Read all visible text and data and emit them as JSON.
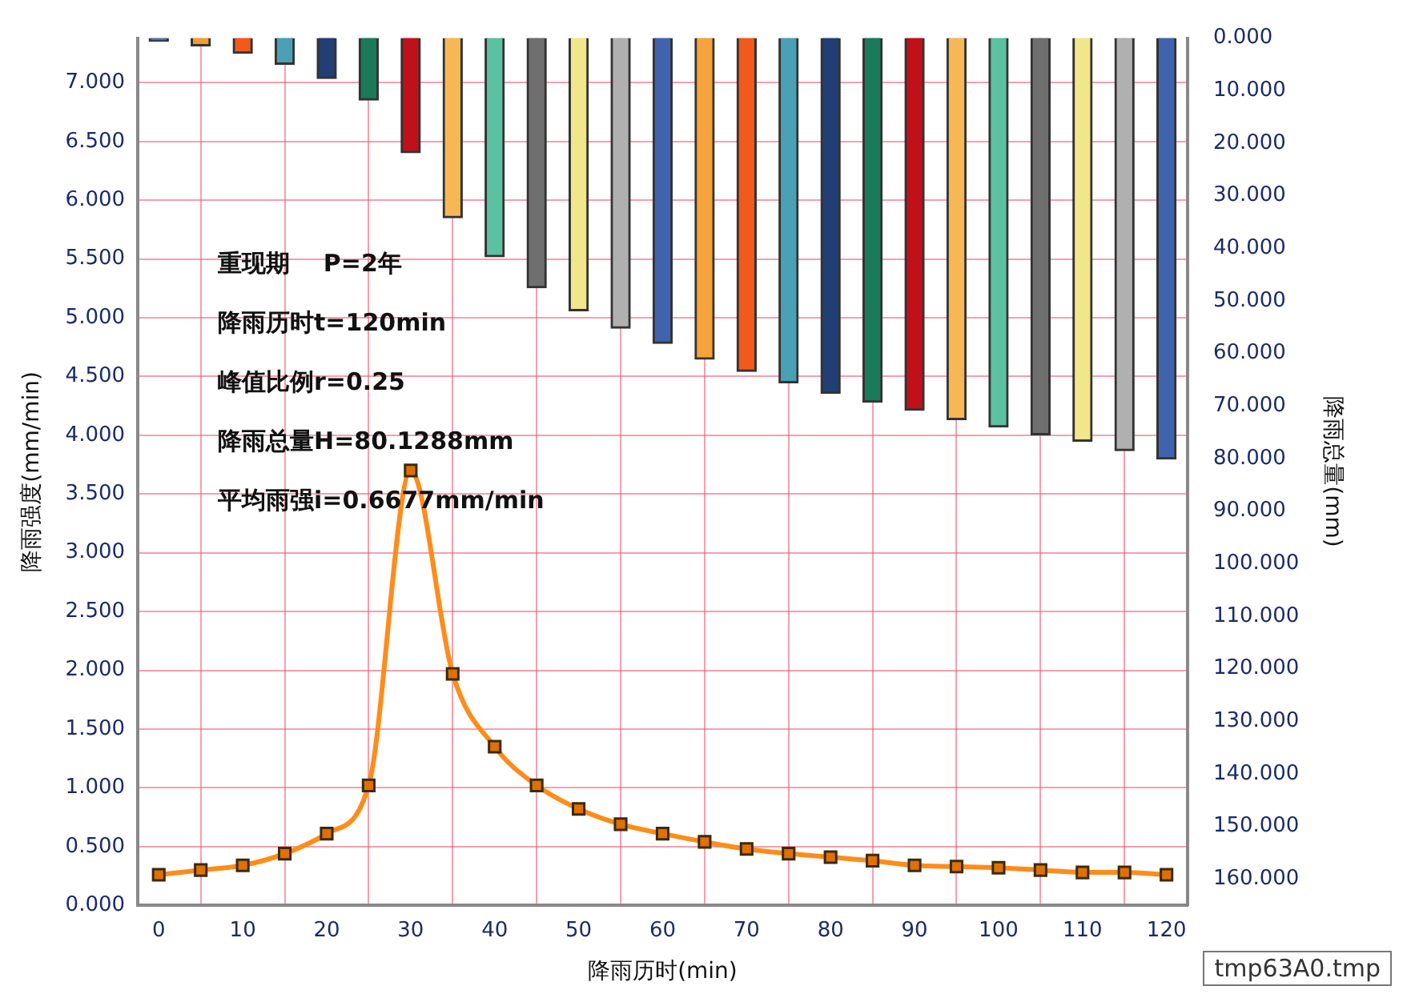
{
  "chart_data": {
    "type": "line",
    "x": [
      0,
      5,
      10,
      15,
      20,
      25,
      30,
      35,
      40,
      45,
      50,
      55,
      60,
      65,
      70,
      75,
      80,
      85,
      90,
      95,
      100,
      105,
      110,
      115,
      120
    ],
    "series": [
      {
        "type": "bar",
        "axis": "y2",
        "colors": [
          "#4f6fb0",
          "#f39c33",
          "#f05a1a",
          "#4aa0b5",
          "#213f74",
          "#1a7a5a",
          "#c0111a",
          "#f5b855",
          "#5cc1a0",
          "#6f6f6f",
          "#f0e68a",
          "#b0b0b0",
          "#3f64ad",
          "#f5a33a",
          "#f05a1a",
          "#4aa0b5",
          "#213f74",
          "#1a7a5a",
          "#c0111a",
          "#f5b855",
          "#5cc1a0",
          "#6f6f6f",
          "#f0e68a",
          "#b0b0b0",
          "#3f64ad"
        ],
        "values": [
          0.6,
          1.5,
          2.9,
          5.0,
          7.7,
          11.8,
          21.8,
          34.2,
          41.6,
          47.5,
          51.9,
          55.2,
          58.1,
          61.1,
          63.4,
          65.6,
          67.6,
          69.3,
          70.8,
          72.6,
          74.0,
          75.5,
          76.7,
          78.5,
          80.1
        ]
      },
      {
        "color": "#ff8c1a",
        "values": [
          0.26,
          0.3,
          0.34,
          0.44,
          0.61,
          1.02,
          3.7,
          1.97,
          1.35,
          1.02,
          0.82,
          0.69,
          0.61,
          0.54,
          0.48,
          0.44,
          0.41,
          0.38,
          0.34,
          0.33,
          0.32,
          0.3,
          0.28,
          0.28,
          0.26
        ]
      }
    ],
    "xlabel": "降雨历时(min)",
    "ylabel": "降雨强度(mm/min)",
    "y2label": "降雨总量(mm)",
    "xlim": [
      -2.5,
      122.5
    ],
    "xticks": [
      0,
      10,
      20,
      30,
      40,
      50,
      60,
      70,
      80,
      90,
      100,
      110,
      120
    ],
    "ylim": [
      0,
      7.38
    ],
    "yticks": [
      {
        "value": 0,
        "label": "0.000"
      },
      {
        "value": 0.5,
        "label": "0.500"
      },
      {
        "value": 1,
        "label": "1.000"
      },
      {
        "value": 1.5,
        "label": "1.500"
      },
      {
        "value": 2,
        "label": "2.000"
      },
      {
        "value": 2.5,
        "label": "2.500"
      },
      {
        "value": 3,
        "label": "3.000"
      },
      {
        "value": 3.5,
        "label": "3.500"
      },
      {
        "value": 4,
        "label": "4.000"
      },
      {
        "value": 4.5,
        "label": "4.500"
      },
      {
        "value": 5,
        "label": "5.000"
      },
      {
        "value": 5.5,
        "label": "5.500"
      },
      {
        "value": 6,
        "label": "6.000"
      },
      {
        "value": 6.5,
        "label": "6.500"
      },
      {
        "value": 7,
        "label": "7.000"
      }
    ],
    "y2lim": [
      165,
      0
    ],
    "y2ticks": [
      {
        "value": 0,
        "label": "0.000"
      },
      {
        "value": 10,
        "label": "10.000"
      },
      {
        "value": 20,
        "label": "20.000"
      },
      {
        "value": 30,
        "label": "30.000"
      },
      {
        "value": 40,
        "label": "40.000"
      },
      {
        "value": 50,
        "label": "50.000"
      },
      {
        "value": 60,
        "label": "60.000"
      },
      {
        "value": 70,
        "label": "70.000"
      },
      {
        "value": 80,
        "label": "80.000"
      },
      {
        "value": 90,
        "label": "90.000"
      },
      {
        "value": 100,
        "label": "100.000"
      },
      {
        "value": 110,
        "label": "110.000"
      },
      {
        "value": 120,
        "label": "120.000"
      },
      {
        "value": 130,
        "label": "130.000"
      },
      {
        "value": 140,
        "label": "140.000"
      },
      {
        "value": 150,
        "label": "150.000"
      },
      {
        "value": 160,
        "label": "160.000"
      }
    ],
    "grid": true,
    "legend": false,
    "marker": "square",
    "line_style": "solid",
    "annotations": [
      "重现期    P=2年",
      "降雨历时t=120min",
      "峰值比例r=0.25",
      "降雨总量H=80.1288mm",
      "平均雨强i=0.6677mm/min",
      "tmp63A0.tmp"
    ]
  }
}
